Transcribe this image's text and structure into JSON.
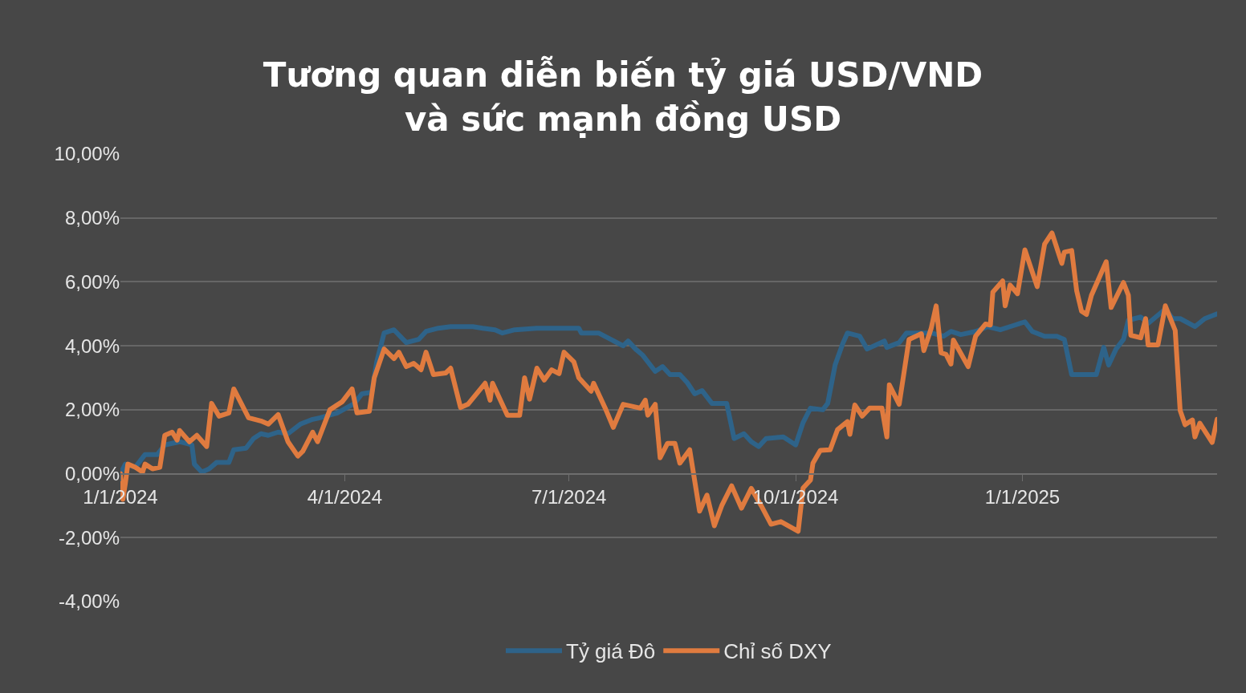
{
  "chart_data": {
    "type": "line",
    "title": "Tương quan diễn biến tỷ giá USD/VND\nvà sức mạnh đồng USD",
    "series": [
      {
        "name": "Tỷ giá Đô",
        "color": "#2e6389",
        "x": [
          "2024-01-01",
          "2024-01-03",
          "2024-01-07",
          "2024-01-11",
          "2024-01-16",
          "2024-01-19",
          "2024-01-25",
          "2024-01-30",
          "2024-01-31",
          "2024-02-03",
          "2024-02-06",
          "2024-02-09",
          "2024-02-14",
          "2024-02-16",
          "2024-02-21",
          "2024-02-24",
          "2024-02-27",
          "2024-03-01",
          "2024-03-05",
          "2024-03-09",
          "2024-03-14",
          "2024-03-19",
          "2024-03-22",
          "2024-03-29",
          "2024-04-05",
          "2024-04-08",
          "2024-04-12",
          "2024-04-14",
          "2024-04-17",
          "2024-04-21",
          "2024-04-26",
          "2024-05-01",
          "2024-05-04",
          "2024-05-09",
          "2024-05-14",
          "2024-05-23",
          "2024-05-27",
          "2024-06-01",
          "2024-06-04",
          "2024-06-09",
          "2024-06-18",
          "2024-07-05",
          "2024-07-06",
          "2024-07-13",
          "2024-07-18",
          "2024-07-23",
          "2024-07-25",
          "2024-07-28",
          "2024-07-31",
          "2024-08-05",
          "2024-08-08",
          "2024-08-11",
          "2024-08-15",
          "2024-08-18",
          "2024-08-21",
          "2024-08-24",
          "2024-08-28",
          "2024-09-03",
          "2024-09-06",
          "2024-09-10",
          "2024-09-13",
          "2024-09-16",
          "2024-09-19",
          "2024-09-26",
          "2024-10-01",
          "2024-10-04",
          "2024-10-07",
          "2024-10-12",
          "2024-10-14",
          "2024-10-17",
          "2024-10-20",
          "2024-10-22",
          "2024-10-27",
          "2024-10-30",
          "2024-11-06",
          "2024-11-07",
          "2024-11-12",
          "2024-11-15",
          "2024-11-25",
          "2024-11-30",
          "2024-12-03",
          "2024-12-07",
          "2024-12-13",
          "2024-12-18",
          "2024-12-23",
          "2024-12-29",
          "2025-01-02",
          "2025-01-05",
          "2025-01-10",
          "2025-01-15",
          "2025-01-18",
          "2025-01-21",
          "2025-01-31",
          "2025-02-03",
          "2025-02-05",
          "2025-02-08",
          "2025-02-11",
          "2025-02-13",
          "2025-02-18",
          "2025-02-21",
          "2025-02-28",
          "2025-03-03",
          "2025-03-06",
          "2025-03-12",
          "2025-03-16",
          "2025-03-21"
        ],
        "values": [
          0.0,
          0.3,
          0.2,
          0.6,
          0.6,
          0.9,
          1.0,
          0.9,
          0.3,
          0.05,
          0.15,
          0.35,
          0.35,
          0.75,
          0.8,
          1.1,
          1.25,
          1.2,
          1.3,
          1.25,
          1.55,
          1.7,
          1.75,
          1.9,
          2.2,
          2.5,
          2.55,
          3.5,
          4.4,
          4.5,
          4.1,
          4.2,
          4.45,
          4.55,
          4.6,
          4.6,
          4.55,
          4.5,
          4.4,
          4.5,
          4.55,
          4.55,
          4.4,
          4.4,
          4.2,
          4.0,
          4.15,
          3.9,
          3.7,
          3.2,
          3.35,
          3.1,
          3.1,
          2.85,
          2.5,
          2.6,
          2.2,
          2.2,
          1.1,
          1.25,
          1.0,
          0.85,
          1.1,
          1.15,
          0.9,
          1.6,
          2.05,
          2.0,
          2.2,
          3.4,
          4.05,
          4.4,
          4.3,
          3.9,
          4.15,
          3.95,
          4.1,
          4.4,
          4.4,
          4.3,
          4.45,
          4.35,
          4.45,
          4.6,
          4.5,
          4.65,
          4.75,
          4.45,
          4.3,
          4.3,
          4.2,
          3.1,
          3.1,
          3.95,
          3.4,
          3.9,
          4.2,
          4.8,
          4.9,
          4.7,
          5.15,
          4.85,
          4.85,
          4.6,
          4.85,
          5.0
        ]
      },
      {
        "name": "Chỉ số DXY",
        "color": "#e07b3f",
        "x": [
          "2024-01-01",
          "2024-01-02",
          "2024-01-03",
          "2024-01-04",
          "2024-01-07",
          "2024-01-10",
          "2024-01-11",
          "2024-01-14",
          "2024-01-17",
          "2024-01-19",
          "2024-01-22",
          "2024-01-24",
          "2024-01-25",
          "2024-01-29",
          "2024-02-01",
          "2024-02-05",
          "2024-02-07",
          "2024-02-10",
          "2024-02-14",
          "2024-02-16",
          "2024-02-21",
          "2024-02-22",
          "2024-02-27",
          "2024-03-01",
          "2024-03-05",
          "2024-03-09",
          "2024-03-13",
          "2024-03-15",
          "2024-03-19",
          "2024-03-21",
          "2024-03-26",
          "2024-03-31",
          "2024-04-04",
          "2024-04-06",
          "2024-04-11",
          "2024-04-13",
          "2024-04-17",
          "2024-04-21",
          "2024-04-23",
          "2024-04-26",
          "2024-04-29",
          "2024-05-02",
          "2024-05-04",
          "2024-05-07",
          "2024-05-12",
          "2024-05-14",
          "2024-05-18",
          "2024-05-21",
          "2024-05-28",
          "2024-05-30",
          "2024-05-31",
          "2024-06-06",
          "2024-06-11",
          "2024-06-13",
          "2024-06-15",
          "2024-06-18",
          "2024-06-21",
          "2024-06-24",
          "2024-06-27",
          "2024-06-29",
          "2024-07-03",
          "2024-07-05",
          "2024-07-10",
          "2024-07-11",
          "2024-07-16",
          "2024-07-19",
          "2024-07-23",
          "2024-07-30",
          "2024-08-01",
          "2024-08-02",
          "2024-08-05",
          "2024-08-07",
          "2024-08-10",
          "2024-08-13",
          "2024-08-15",
          "2024-08-19",
          "2024-08-23",
          "2024-08-26",
          "2024-08-29",
          "2024-09-01",
          "2024-09-05",
          "2024-09-09",
          "2024-09-13",
          "2024-09-17",
          "2024-09-21",
          "2024-09-25",
          "2024-10-02",
          "2024-10-04",
          "2024-10-07",
          "2024-10-08",
          "2024-10-11",
          "2024-10-15",
          "2024-10-18",
          "2024-10-22",
          "2024-10-23",
          "2024-10-25",
          "2024-10-28",
          "2024-10-31",
          "2024-11-05",
          "2024-11-07",
          "2024-11-08",
          "2024-11-12",
          "2024-11-16",
          "2024-11-21",
          "2024-11-22",
          "2024-11-25",
          "2024-11-27",
          "2024-11-29",
          "2024-12-01",
          "2024-12-03",
          "2024-12-04",
          "2024-12-10",
          "2024-12-13",
          "2024-12-17",
          "2024-12-19",
          "2024-12-20",
          "2024-12-24",
          "2024-12-25",
          "2024-12-27",
          "2024-12-30",
          "2025-01-02",
          "2025-01-07",
          "2025-01-10",
          "2025-01-13",
          "2025-01-17",
          "2025-01-18",
          "2025-01-21",
          "2025-01-23",
          "2025-01-25",
          "2025-01-27",
          "2025-01-29",
          "2025-02-04",
          "2025-02-06",
          "2025-02-11",
          "2025-02-13",
          "2025-02-14",
          "2025-02-18",
          "2025-02-20",
          "2025-02-21",
          "2025-02-25",
          "2025-02-28",
          "2025-03-04",
          "2025-03-06",
          "2025-03-08",
          "2025-03-11",
          "2025-03-12",
          "2025-03-14",
          "2025-03-19",
          "2025-03-21"
        ],
        "values": [
          0.0,
          -0.8,
          -0.3,
          0.3,
          0.2,
          0.05,
          0.3,
          0.15,
          0.2,
          1.2,
          1.3,
          1.05,
          1.35,
          1.0,
          1.2,
          0.85,
          2.2,
          1.8,
          1.9,
          2.65,
          1.9,
          1.75,
          1.65,
          1.55,
          1.85,
          1.0,
          0.55,
          0.7,
          1.3,
          1.0,
          2.0,
          2.25,
          2.65,
          1.9,
          1.95,
          3.0,
          3.9,
          3.6,
          3.8,
          3.35,
          3.45,
          3.25,
          3.8,
          3.1,
          3.15,
          3.3,
          2.07,
          2.17,
          2.83,
          2.3,
          2.83,
          1.83,
          1.83,
          3.0,
          2.33,
          3.3,
          2.93,
          3.25,
          3.13,
          3.8,
          3.5,
          3.0,
          2.58,
          2.83,
          2.0,
          1.45,
          2.17,
          2.05,
          2.3,
          1.83,
          2.17,
          0.5,
          0.95,
          0.95,
          0.33,
          0.75,
          -1.17,
          -0.67,
          -1.63,
          -1.0,
          -0.38,
          -1.08,
          -0.46,
          -1.0,
          -1.58,
          -1.5,
          -1.8,
          -0.45,
          -0.2,
          0.33,
          0.73,
          0.75,
          1.38,
          1.63,
          1.23,
          2.15,
          1.8,
          2.05,
          2.05,
          1.15,
          2.78,
          2.17,
          4.2,
          4.38,
          3.85,
          4.55,
          5.25,
          3.78,
          3.73,
          3.43,
          4.18,
          3.35,
          4.3,
          4.68,
          4.65,
          5.68,
          6.03,
          5.25,
          5.9,
          5.63,
          7.0,
          5.85,
          7.18,
          7.53,
          6.58,
          6.93,
          6.98,
          5.73,
          5.08,
          4.98,
          5.58,
          6.63,
          5.2,
          5.98,
          5.58,
          4.33,
          4.25,
          4.85,
          4.03,
          4.03,
          5.25,
          4.48,
          1.98,
          1.53,
          1.68,
          1.15,
          1.58,
          0.98,
          1.7
        ]
      }
    ],
    "xlim": [
      "2024-01-01",
      "2025-03-21"
    ],
    "xticks": [
      {
        "value": "2024-01-01",
        "label": "1/1/2024"
      },
      {
        "value": "2024-04-01",
        "label": "4/1/2024"
      },
      {
        "value": "2024-07-01",
        "label": "7/1/2024"
      },
      {
        "value": "2024-10-01",
        "label": "10/1/2024"
      },
      {
        "value": "2025-01-01",
        "label": "1/1/2025"
      }
    ],
    "ylim": [
      -4,
      10
    ],
    "yticks": [
      {
        "value": -4,
        "label": "-4,00%"
      },
      {
        "value": -2,
        "label": "-2,00%"
      },
      {
        "value": 0,
        "label": "0,00%"
      },
      {
        "value": 2,
        "label": "2,00%"
      },
      {
        "value": 4,
        "label": "4,00%"
      },
      {
        "value": 6,
        "label": "6,00%"
      },
      {
        "value": 8,
        "label": "8,00%"
      },
      {
        "value": 10,
        "label": "10,00%"
      }
    ],
    "grid": "y",
    "legend": "bottom",
    "marker": "none",
    "line_style": "solid"
  }
}
